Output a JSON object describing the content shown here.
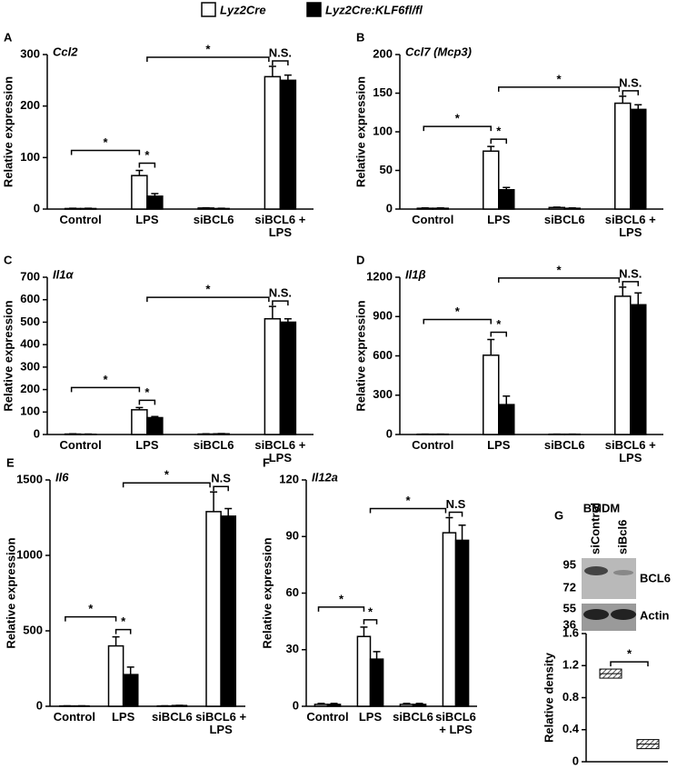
{
  "legend": [
    {
      "name": "Lyz2Cre",
      "color": "#ffffff"
    },
    {
      "name": "Lyz2Cre:KLF6fl/fl",
      "color": "#000000"
    }
  ],
  "chart_data": [
    {
      "type": "bar",
      "panel": "A",
      "title": "Ccl2",
      "ylabel": "Relative expression",
      "categories": [
        "Control",
        "LPS",
        "siBCL6",
        "siBCL6 + LPS"
      ],
      "series": [
        {
          "values": [
            1,
            65,
            2,
            257
          ],
          "errors": [
            0.5,
            10,
            0.5,
            20
          ]
        },
        {
          "values": [
            1,
            25,
            1,
            250
          ],
          "errors": [
            0.5,
            5,
            0.5,
            10
          ]
        }
      ],
      "ylim": [
        0,
        300
      ],
      "yticks": [
        0,
        100,
        200,
        300
      ],
      "annotations": [
        "*",
        "*",
        "*",
        "N.S."
      ]
    },
    {
      "type": "bar",
      "panel": "B",
      "title": "Ccl7 (Mcp3)",
      "ylabel": "Relative expression",
      "categories": [
        "Control",
        "LPS",
        "siBCL6",
        "siBCL6 + LPS"
      ],
      "series": [
        {
          "values": [
            1,
            75,
            2,
            137
          ],
          "errors": [
            0.5,
            6,
            0.5,
            9
          ]
        },
        {
          "values": [
            1,
            25,
            1,
            129
          ],
          "errors": [
            0.5,
            3,
            0.5,
            6
          ]
        }
      ],
      "ylim": [
        0,
        200
      ],
      "yticks": [
        0,
        50,
        100,
        150,
        200
      ],
      "annotations": [
        "*",
        "*",
        "*",
        "N.S."
      ]
    },
    {
      "type": "bar",
      "panel": "C",
      "title": "Il1α",
      "ylabel": "Relative expression",
      "categories": [
        "Control",
        "LPS",
        "siBCL6",
        "siBCL6 + LPS"
      ],
      "series": [
        {
          "values": [
            2,
            110,
            2,
            515
          ],
          "errors": [
            1,
            10,
            1,
            55
          ]
        },
        {
          "values": [
            1,
            75,
            3,
            500
          ],
          "errors": [
            1,
            5,
            1,
            15
          ]
        }
      ],
      "ylim": [
        0,
        700
      ],
      "yticks": [
        0,
        100,
        200,
        300,
        400,
        500,
        600,
        700
      ],
      "annotations": [
        "*",
        "*",
        "*",
        "N.S."
      ]
    },
    {
      "type": "bar",
      "panel": "D",
      "title": "Il1β",
      "ylabel": "Relative expression",
      "categories": [
        "Control",
        "LPS",
        "siBCL6",
        "siBCL6 + LPS"
      ],
      "series": [
        {
          "values": [
            2,
            605,
            2,
            1055
          ],
          "errors": [
            1,
            120,
            1,
            70
          ]
        },
        {
          "values": [
            2,
            228,
            2,
            990
          ],
          "errors": [
            1,
            65,
            1,
            90
          ]
        }
      ],
      "ylim": [
        0,
        1200
      ],
      "yticks": [
        0,
        300,
        600,
        900,
        1200
      ],
      "annotations": [
        "*",
        "*",
        "*",
        "N.S."
      ]
    },
    {
      "type": "bar",
      "panel": "E",
      "title": "Il6",
      "ylabel": "Relative expression",
      "categories": [
        "Control",
        "LPS",
        "siBCL6",
        "siBCL6 + LPS"
      ],
      "series": [
        {
          "values": [
            2,
            400,
            2,
            1290
          ],
          "errors": [
            1,
            60,
            1,
            130
          ]
        },
        {
          "values": [
            2,
            210,
            5,
            1260
          ],
          "errors": [
            1,
            50,
            1,
            50
          ]
        }
      ],
      "ylim": [
        0,
        1500
      ],
      "yticks": [
        0,
        500,
        1000,
        1500
      ],
      "annotations": [
        "*",
        "*",
        "*",
        "N.S"
      ]
    },
    {
      "type": "bar",
      "panel": "F",
      "title": "Il12a",
      "ylabel": "Relative expression",
      "categories": [
        "Control",
        "LPS",
        "siBCL6",
        "siBCL6 + LPS"
      ],
      "series": [
        {
          "values": [
            1,
            37,
            1,
            92
          ],
          "errors": [
            0.5,
            5,
            0.5,
            8
          ]
        },
        {
          "values": [
            1,
            25,
            1,
            88
          ],
          "errors": [
            0.5,
            4,
            0.5,
            8
          ]
        }
      ],
      "ylim": [
        0,
        120
      ],
      "yticks": [
        0,
        30,
        60,
        90,
        120
      ],
      "annotations": [
        "*",
        "*",
        "*",
        "N.S"
      ]
    },
    {
      "type": "box",
      "panel": "G",
      "blot_title": "BMDM",
      "markers": [
        "95",
        "72",
        "55",
        "36"
      ],
      "bands": [
        "BCL6",
        "Actin"
      ],
      "ylabel": "Relative density",
      "categories": [
        "siControl",
        "siBcl6"
      ],
      "values": [
        1.1,
        0.22
      ],
      "ylim": [
        0,
        1.6
      ],
      "yticks": [
        0,
        0.4,
        0.8,
        1.2,
        1.6
      ],
      "annotations": [
        "*"
      ]
    }
  ]
}
